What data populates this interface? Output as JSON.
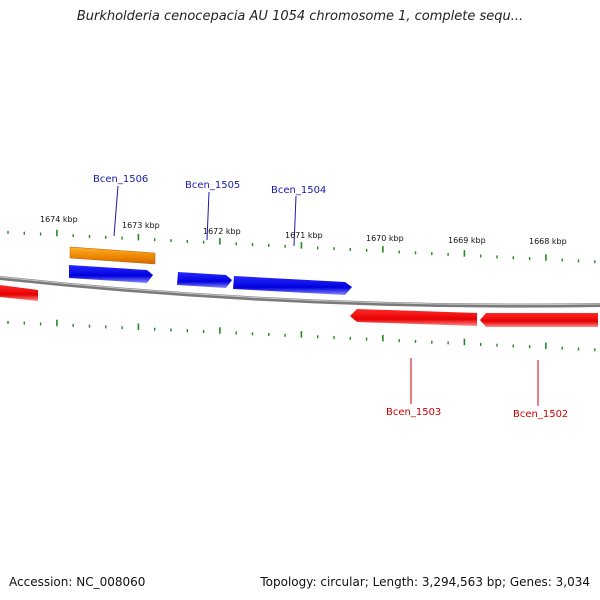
{
  "title": "Burkholderia cenocepacia AU 1054 chromosome 1, complete sequ...",
  "accession": "Accession: NC_008060",
  "summary": "Topology: circular; Length: 3,294,563 bp; Genes: 3,034",
  "ruler": [
    "1674 kbp",
    "1673 kbp",
    "1672 kbp",
    "1671 kbp",
    "1670 kbp",
    "1669 kbp",
    "1668 kbp"
  ],
  "genes": [
    {
      "label": "Bcen_1506",
      "color": "#ff9900",
      "strand": "+"
    },
    {
      "label": "Bcen_1505",
      "color": "#0000ff",
      "strand": "+"
    },
    {
      "label": "Bcen_1504",
      "color": "#0000ff",
      "strand": "+"
    },
    {
      "label": "Bcen_1503",
      "color": "#ff0000",
      "strand": "-"
    },
    {
      "label": "Bcen_1502",
      "color": "#ff0000",
      "strand": "-"
    }
  ],
  "colors": {
    "ticks": "#228b22",
    "backbone": "#888888",
    "forward_label": "#1a1aaa",
    "reverse_label": "#cc0000"
  }
}
